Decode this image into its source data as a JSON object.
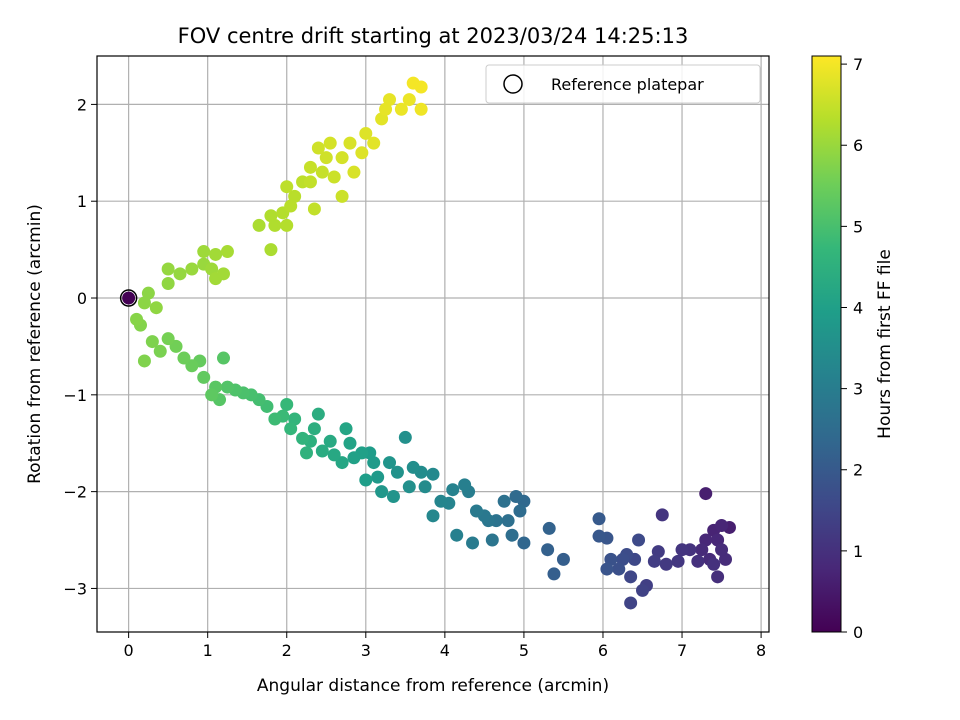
{
  "chart_data": {
    "type": "scatter",
    "title": "FOV centre drift starting at 2023/03/24 14:25:13",
    "xlabel": "Angular distance from reference (arcmin)",
    "ylabel": "Rotation from reference (arcmin)",
    "xlim": [
      -0.4,
      8.1
    ],
    "ylim": [
      -3.45,
      2.5
    ],
    "xticks": [
      0,
      1,
      2,
      3,
      4,
      5,
      6,
      7,
      8
    ],
    "yticks": [
      -3,
      -2,
      -1,
      0,
      1,
      2
    ],
    "grid": true,
    "legend": {
      "position": "top-right",
      "entries": [
        "Reference platepar"
      ]
    },
    "reference_point": {
      "x": 0,
      "y": 0
    },
    "colorbar": {
      "label": "Hours from first FF file",
      "colormap": "viridis",
      "range": [
        0,
        7.1
      ],
      "ticks": [
        0,
        1,
        2,
        3,
        4,
        5,
        6,
        7
      ]
    },
    "series": [
      {
        "points": [
          [
            0.0,
            0.0,
            0.0
          ],
          [
            7.3,
            -2.02,
            0.6
          ],
          [
            7.6,
            -2.37,
            0.6
          ],
          [
            7.4,
            -2.4,
            0.7
          ],
          [
            7.5,
            -2.35,
            0.75
          ],
          [
            7.45,
            -2.5,
            0.8
          ],
          [
            7.3,
            -2.5,
            0.8
          ],
          [
            7.25,
            -2.6,
            0.85
          ],
          [
            7.35,
            -2.7,
            0.85
          ],
          [
            7.55,
            -2.7,
            0.9
          ],
          [
            7.5,
            -2.6,
            0.9
          ],
          [
            7.45,
            -2.88,
            0.95
          ],
          [
            7.4,
            -2.75,
            1.0
          ],
          [
            7.2,
            -2.72,
            1.0
          ],
          [
            7.1,
            -2.6,
            1.05
          ],
          [
            7.0,
            -2.6,
            1.1
          ],
          [
            6.75,
            -2.24,
            1.1
          ],
          [
            6.95,
            -2.72,
            1.15
          ],
          [
            6.8,
            -2.75,
            1.2
          ],
          [
            6.7,
            -2.62,
            1.25
          ],
          [
            6.65,
            -2.72,
            1.3
          ],
          [
            6.55,
            -2.97,
            1.35
          ],
          [
            6.5,
            -3.02,
            1.4
          ],
          [
            6.35,
            -3.15,
            1.45
          ],
          [
            6.35,
            -2.88,
            1.5
          ],
          [
            6.4,
            -2.7,
            1.55
          ],
          [
            6.45,
            -2.5,
            1.6
          ],
          [
            6.3,
            -2.65,
            1.65
          ],
          [
            6.25,
            -2.7,
            1.7
          ],
          [
            6.2,
            -2.8,
            1.75
          ],
          [
            6.1,
            -2.7,
            1.8
          ],
          [
            6.05,
            -2.8,
            1.85
          ],
          [
            6.05,
            -2.48,
            1.9
          ],
          [
            5.95,
            -2.46,
            1.95
          ],
          [
            5.95,
            -2.28,
            2.0
          ],
          [
            5.5,
            -2.7,
            2.1
          ],
          [
            5.38,
            -2.85,
            2.15
          ],
          [
            5.3,
            -2.6,
            2.2
          ],
          [
            5.32,
            -2.38,
            2.25
          ],
          [
            5.0,
            -2.53,
            2.35
          ],
          [
            5.0,
            -2.1,
            2.4
          ],
          [
            4.9,
            -2.05,
            2.45
          ],
          [
            4.95,
            -2.2,
            2.5
          ],
          [
            4.85,
            -2.45,
            2.55
          ],
          [
            4.8,
            -2.3,
            2.6
          ],
          [
            4.75,
            -2.1,
            2.65
          ],
          [
            4.65,
            -2.3,
            2.7
          ],
          [
            4.6,
            -2.5,
            2.75
          ],
          [
            4.55,
            -2.3,
            2.8
          ],
          [
            4.5,
            -2.25,
            2.85
          ],
          [
            4.4,
            -2.2,
            2.9
          ],
          [
            4.35,
            -2.53,
            2.95
          ],
          [
            4.3,
            -2.0,
            3.0
          ],
          [
            4.25,
            -1.93,
            3.05
          ],
          [
            4.15,
            -2.45,
            3.1
          ],
          [
            4.1,
            -1.98,
            3.15
          ],
          [
            4.05,
            -2.12,
            3.2
          ],
          [
            3.95,
            -2.1,
            3.25
          ],
          [
            3.85,
            -2.25,
            3.3
          ],
          [
            3.85,
            -1.82,
            3.35
          ],
          [
            3.75,
            -1.95,
            3.4
          ],
          [
            3.7,
            -1.8,
            3.45
          ],
          [
            3.6,
            -1.75,
            3.5
          ],
          [
            3.55,
            -1.95,
            3.55
          ],
          [
            3.5,
            -1.44,
            3.55
          ],
          [
            3.4,
            -1.8,
            3.6
          ],
          [
            3.35,
            -2.05,
            3.65
          ],
          [
            3.3,
            -1.7,
            3.7
          ],
          [
            3.2,
            -2.0,
            3.75
          ],
          [
            3.15,
            -1.85,
            3.8
          ],
          [
            3.1,
            -1.7,
            3.85
          ],
          [
            3.05,
            -1.6,
            3.9
          ],
          [
            3.0,
            -1.88,
            3.95
          ],
          [
            2.95,
            -1.6,
            4.0
          ],
          [
            2.85,
            -1.65,
            4.05
          ],
          [
            2.8,
            -1.5,
            4.1
          ],
          [
            2.75,
            -1.35,
            4.15
          ],
          [
            2.7,
            -1.7,
            4.2
          ],
          [
            2.6,
            -1.62,
            4.25
          ],
          [
            2.55,
            -1.48,
            4.3
          ],
          [
            2.45,
            -1.58,
            4.35
          ],
          [
            2.4,
            -1.2,
            4.4
          ],
          [
            2.35,
            -1.35,
            4.45
          ],
          [
            2.3,
            -1.48,
            4.5
          ],
          [
            2.25,
            -1.6,
            4.55
          ],
          [
            2.2,
            -1.45,
            4.6
          ],
          [
            2.1,
            -1.25,
            4.65
          ],
          [
            2.05,
            -1.35,
            4.7
          ],
          [
            2.0,
            -1.1,
            4.75
          ],
          [
            1.95,
            -1.22,
            4.8
          ],
          [
            1.85,
            -1.25,
            4.85
          ],
          [
            1.75,
            -1.12,
            4.9
          ],
          [
            1.65,
            -1.05,
            4.95
          ],
          [
            1.55,
            -1.0,
            5.0
          ],
          [
            1.45,
            -0.98,
            5.05
          ],
          [
            1.35,
            -0.95,
            5.1
          ],
          [
            1.25,
            -0.92,
            5.15
          ],
          [
            1.2,
            -0.62,
            5.2
          ],
          [
            1.15,
            -1.05,
            5.2
          ],
          [
            1.1,
            -0.92,
            5.25
          ],
          [
            1.05,
            -1.0,
            5.3
          ],
          [
            0.95,
            -0.82,
            5.35
          ],
          [
            0.9,
            -0.65,
            5.4
          ],
          [
            0.8,
            -0.7,
            5.45
          ],
          [
            0.7,
            -0.62,
            5.5
          ],
          [
            0.6,
            -0.5,
            5.55
          ],
          [
            0.5,
            -0.42,
            5.6
          ],
          [
            0.4,
            -0.55,
            5.65
          ],
          [
            0.3,
            -0.45,
            5.7
          ],
          [
            0.2,
            -0.65,
            5.72
          ],
          [
            0.15,
            -0.28,
            5.75
          ],
          [
            0.1,
            -0.22,
            5.8
          ],
          [
            0.2,
            -0.05,
            5.85
          ],
          [
            0.25,
            0.05,
            5.85
          ],
          [
            0.35,
            -0.1,
            5.9
          ],
          [
            0.5,
            0.15,
            5.9
          ],
          [
            0.5,
            0.3,
            5.95
          ],
          [
            0.65,
            0.25,
            5.95
          ],
          [
            0.8,
            0.3,
            6.0
          ],
          [
            0.95,
            0.35,
            6.0
          ],
          [
            0.95,
            0.48,
            6.05
          ],
          [
            1.05,
            0.3,
            6.05
          ],
          [
            1.1,
            0.45,
            6.1
          ],
          [
            1.1,
            0.2,
            6.1
          ],
          [
            1.2,
            0.25,
            6.1
          ],
          [
            1.25,
            0.48,
            6.15
          ],
          [
            1.65,
            0.75,
            6.2
          ],
          [
            1.8,
            0.5,
            6.2
          ],
          [
            1.85,
            0.75,
            6.25
          ],
          [
            1.8,
            0.85,
            6.25
          ],
          [
            1.95,
            0.88,
            6.3
          ],
          [
            2.0,
            0.75,
            6.3
          ],
          [
            2.05,
            0.95,
            6.35
          ],
          [
            2.1,
            1.05,
            6.35
          ],
          [
            2.0,
            1.15,
            6.4
          ],
          [
            2.2,
            1.2,
            6.4
          ],
          [
            2.35,
            0.92,
            6.45
          ],
          [
            2.3,
            1.2,
            6.45
          ],
          [
            2.3,
            1.35,
            6.5
          ],
          [
            2.45,
            1.3,
            6.5
          ],
          [
            2.6,
            1.25,
            6.55
          ],
          [
            2.7,
            1.05,
            6.55
          ],
          [
            2.5,
            1.45,
            6.6
          ],
          [
            2.4,
            1.55,
            6.6
          ],
          [
            2.55,
            1.6,
            6.65
          ],
          [
            2.7,
            1.45,
            6.65
          ],
          [
            2.8,
            1.6,
            6.7
          ],
          [
            2.85,
            1.3,
            6.7
          ],
          [
            2.95,
            1.5,
            6.75
          ],
          [
            3.0,
            1.7,
            6.75
          ],
          [
            3.1,
            1.6,
            6.8
          ],
          [
            3.2,
            1.85,
            6.8
          ],
          [
            3.25,
            1.95,
            6.85
          ],
          [
            3.3,
            2.05,
            6.85
          ],
          [
            3.45,
            1.95,
            6.9
          ],
          [
            3.55,
            2.05,
            6.9
          ],
          [
            3.7,
            1.95,
            6.95
          ],
          [
            3.6,
            2.22,
            7.0
          ],
          [
            3.7,
            2.18,
            7.0
          ]
        ]
      }
    ]
  }
}
